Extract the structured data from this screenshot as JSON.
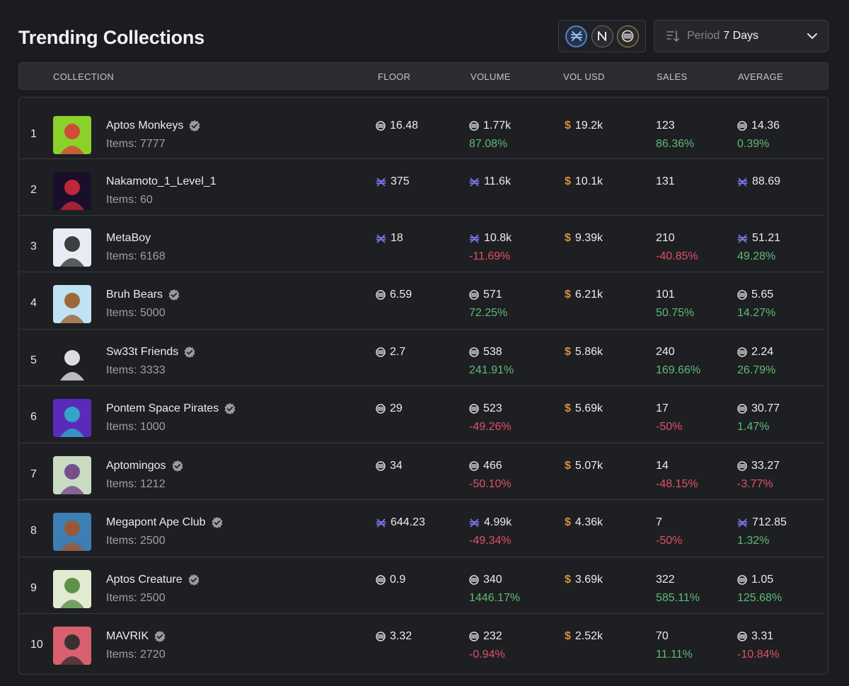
{
  "page": {
    "title": "Trending Collections"
  },
  "period": {
    "label": "Period",
    "value": "7 Days"
  },
  "chains": [
    "aptos-icon",
    "near-icon",
    "solana-icon"
  ],
  "colors": {
    "positive": "#5fbb77",
    "negative": "#e0506a",
    "usd": "#d7913b",
    "aptos": "#7d72e8"
  },
  "columns": {
    "collection": "COLLECTION",
    "floor": "FLOOR",
    "volume": "VOLUME",
    "vol_usd": "VOL USD",
    "sales": "SALES",
    "average": "AVERAGE"
  },
  "rows": [
    {
      "rank": "1",
      "name": "Aptos Monkeys",
      "verified": true,
      "items": "Items: 7777",
      "chain": "sol",
      "floor": "16.48",
      "volume": "1.77k",
      "volume_change": "87.08%",
      "vol_usd": "19.2k",
      "sales": "123",
      "sales_change": "86.36%",
      "average": "14.36",
      "average_change": "0.39%",
      "thumb_bg": "#8ad12c",
      "thumb_fg": "#d63b3b"
    },
    {
      "rank": "2",
      "name": "Nakamoto_1_Level_1",
      "verified": false,
      "items": "Items: 60",
      "chain": "apt",
      "floor": "375",
      "volume": "11.6k",
      "volume_change": "",
      "vol_usd": "10.1k",
      "sales": "131",
      "sales_change": "",
      "average": "88.69",
      "average_change": "",
      "thumb_bg": "#1a0f2a",
      "thumb_fg": "#d12a3c"
    },
    {
      "rank": "3",
      "name": "MetaBoy",
      "verified": false,
      "items": "Items: 6168",
      "chain": "apt",
      "floor": "18",
      "volume": "10.8k",
      "volume_change": "-11.69%",
      "vol_usd": "9.39k",
      "sales": "210",
      "sales_change": "-40.85%",
      "average": "51.21",
      "average_change": "49.28%",
      "thumb_bg": "#e6edf4",
      "thumb_fg": "#2a2a2e"
    },
    {
      "rank": "4",
      "name": "Bruh Bears",
      "verified": true,
      "items": "Items: 5000",
      "chain": "sol",
      "floor": "6.59",
      "volume": "571",
      "volume_change": "72.25%",
      "vol_usd": "6.21k",
      "sales": "101",
      "sales_change": "50.75%",
      "average": "5.65",
      "average_change": "14.27%",
      "thumb_bg": "#bfe3f5",
      "thumb_fg": "#9a5a24"
    },
    {
      "rank": "5",
      "name": "Sw33t Friends",
      "verified": true,
      "items": "Items: 3333",
      "chain": "sol",
      "floor": "2.7",
      "volume": "538",
      "volume_change": "241.91%",
      "vol_usd": "5.86k",
      "sales": "240",
      "sales_change": "169.66%",
      "average": "2.24",
      "average_change": "26.79%",
      "thumb_bg": "#1e1f22",
      "thumb_fg": "#f2f2f4"
    },
    {
      "rank": "6",
      "name": "Pontem Space Pirates",
      "verified": true,
      "items": "Items: 1000",
      "chain": "sol",
      "floor": "29",
      "volume": "523",
      "volume_change": "-49.26%",
      "vol_usd": "5.69k",
      "sales": "17",
      "sales_change": "-50%",
      "average": "30.77",
      "average_change": "1.47%",
      "thumb_bg": "#5a2bb8",
      "thumb_fg": "#2fb3c9"
    },
    {
      "rank": "7",
      "name": "Aptomingos",
      "verified": true,
      "items": "Items: 1212",
      "chain": "sol",
      "floor": "34",
      "volume": "466",
      "volume_change": "-50.10%",
      "vol_usd": "5.07k",
      "sales": "14",
      "sales_change": "-48.15%",
      "average": "33.27",
      "average_change": "-3.77%",
      "thumb_bg": "#c9dcc3",
      "thumb_fg": "#6b3f86"
    },
    {
      "rank": "8",
      "name": "Megapont Ape Club",
      "verified": true,
      "items": "Items: 2500",
      "chain": "apt",
      "floor": "644.23",
      "volume": "4.99k",
      "volume_change": "-49.34%",
      "vol_usd": "4.36k",
      "sales": "7",
      "sales_change": "-50%",
      "average": "712.85",
      "average_change": "1.32%",
      "thumb_bg": "#3d7fb3",
      "thumb_fg": "#a3552a"
    },
    {
      "rank": "9",
      "name": "Aptos Creature",
      "verified": true,
      "items": "Items: 2500",
      "chain": "sol",
      "floor": "0.9",
      "volume": "340",
      "volume_change": "1446.17%",
      "vol_usd": "3.69k",
      "sales": "322",
      "sales_change": "585.11%",
      "average": "1.05",
      "average_change": "125.68%",
      "thumb_bg": "#e3ead2",
      "thumb_fg": "#4e8a3a"
    },
    {
      "rank": "10",
      "name": "MAVRIK",
      "verified": true,
      "items": "Items: 2720",
      "chain": "sol",
      "floor": "3.32",
      "volume": "232",
      "volume_change": "-0.94%",
      "vol_usd": "2.52k",
      "sales": "70",
      "sales_change": "11.11%",
      "average": "3.31",
      "average_change": "-10.84%",
      "thumb_bg": "#d9606e",
      "thumb_fg": "#2a2a2e"
    }
  ]
}
